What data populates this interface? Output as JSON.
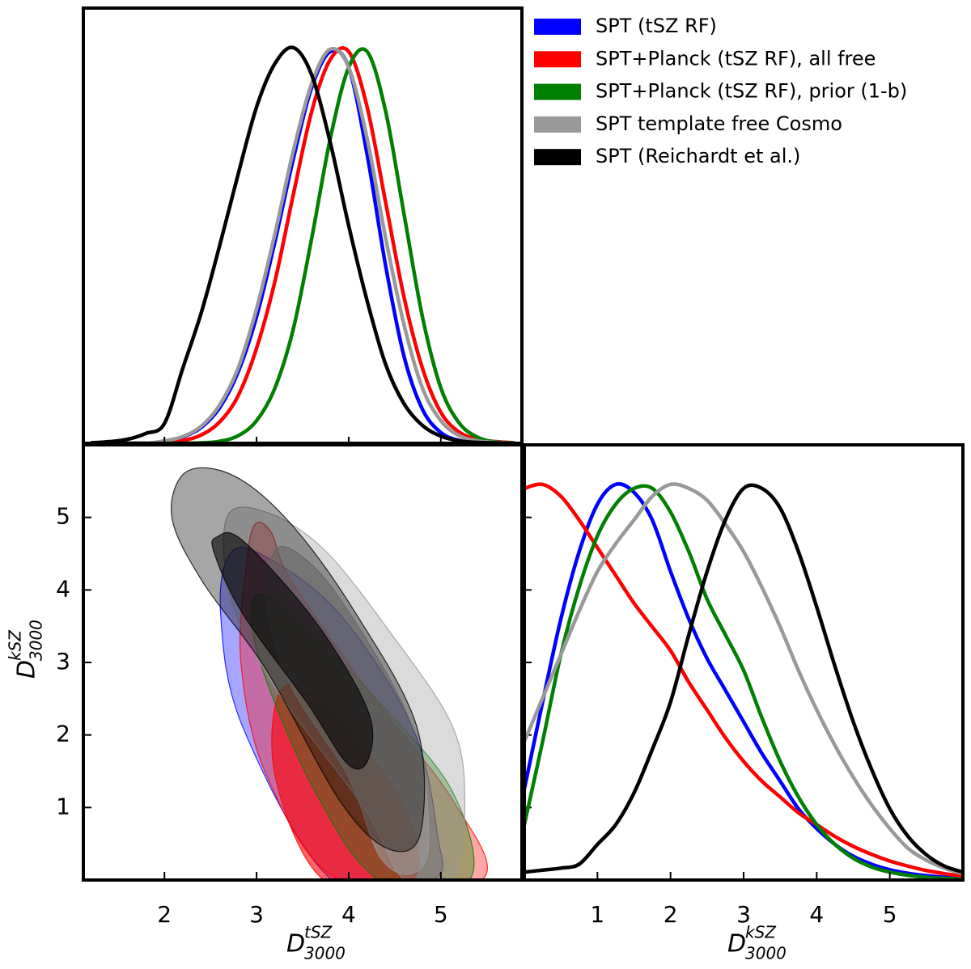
{
  "chart_data": [
    {
      "type": "line",
      "legend": "upper right",
      "xlim": [
        1.12,
        5.88
      ],
      "ylim": [
        0,
        1.1
      ],
      "x": [
        1.2,
        1.4,
        1.6,
        1.8,
        2.0,
        2.2,
        2.4,
        2.6,
        2.8,
        3.0,
        3.2,
        3.4,
        3.6,
        3.8,
        4.0,
        4.2,
        4.4,
        4.6,
        4.8,
        5.0,
        5.2,
        5.4,
        5.6,
        5.8
      ],
      "series": [
        {
          "name": "SPT (tSZ RF)",
          "color": "#0000ff",
          "values": [
            0,
            0,
            0,
            0,
            0.005,
            0.016,
            0.04,
            0.09,
            0.18,
            0.32,
            0.51,
            0.72,
            0.9,
            0.99,
            0.95,
            0.73,
            0.45,
            0.22,
            0.086,
            0.027,
            0.007,
            0.001,
            0,
            0
          ]
        },
        {
          "name": "SPT+Planck (tSZ RF), all free",
          "color": "#ff0000",
          "values": [
            0,
            0,
            0,
            0,
            0.002,
            0.007,
            0.021,
            0.054,
            0.12,
            0.24,
            0.41,
            0.63,
            0.84,
            0.97,
            0.99,
            0.85,
            0.61,
            0.37,
            0.19,
            0.078,
            0.028,
            0.01,
            0.004,
            0.001
          ]
        },
        {
          "name": "SPT+Planck (tSZ RF), prior (1-b)",
          "color": "#008000",
          "values": [
            0,
            0,
            0,
            0,
            0,
            0,
            0.001,
            0.005,
            0.019,
            0.057,
            0.14,
            0.29,
            0.52,
            0.77,
            0.95,
            0.99,
            0.84,
            0.58,
            0.32,
            0.14,
            0.051,
            0.015,
            0.003,
            0.001
          ]
        },
        {
          "name": "SPT template free Cosmo",
          "color": "#999999",
          "values": [
            0,
            0,
            0,
            0,
            0.006,
            0.017,
            0.043,
            0.097,
            0.19,
            0.34,
            0.53,
            0.74,
            0.91,
            0.996,
            0.95,
            0.77,
            0.52,
            0.3,
            0.14,
            0.057,
            0.019,
            0.006,
            0.002,
            0
          ]
        },
        {
          "name": "SPT (Reichardt et al.)",
          "color": "#000000",
          "values": [
            0.001,
            0.004,
            0.01,
            0.025,
            0.05,
            0.19,
            0.33,
            0.5,
            0.68,
            0.85,
            0.96,
            1.0,
            0.93,
            0.76,
            0.55,
            0.36,
            0.2,
            0.1,
            0.045,
            0.018,
            0.006,
            0.002,
            0.001,
            0
          ]
        }
      ]
    },
    {
      "type": "contour",
      "xlim": [
        1.12,
        5.88
      ],
      "xticks": [
        2,
        3,
        4,
        5
      ],
      "ylim": [
        0,
        6.0
      ],
      "yticks": [
        1,
        2,
        3,
        4,
        5
      ],
      "x_label": {
        "base": "D",
        "sup": "tSZ",
        "sub": "3000"
      },
      "y_label": {
        "base": "D",
        "sup": "kSZ",
        "sub": "3000"
      },
      "series": [
        {
          "color": "#0000ff",
          "contours": [
            {
              "x": [
                2.72,
                3.11,
                3.9,
                4.69,
                4.96,
                4.91,
                3.82,
                2.85,
                2.61
              ],
              "y": [
                4.51,
                4.45,
                3.67,
                2.11,
                0.65,
                0.0,
                0.0,
                2.11,
                3.67
              ]
            }
          ]
        },
        {
          "color": "#ff0000",
          "contours": [
            {
              "x": [
                2.98,
                3.16,
                3.38,
                4.25,
                5.13,
                5.44,
                3.9,
                3.11,
                2.83,
                2.89
              ],
              "y": [
                4.9,
                4.79,
                4.12,
                2.55,
                1.1,
                0.0,
                0.0,
                1.44,
                3.0,
                4.34
              ]
            },
            {
              "x": [
                3.29,
                3.9,
                4.61,
                4.69,
                3.73,
                3.2
              ],
              "y": [
                2.66,
                2.22,
                0.99,
                0.0,
                0.0,
                1.44
              ]
            }
          ]
        },
        {
          "color": "#008000",
          "contours": [
            {
              "x": [
                2.98,
                3.38,
                4.34,
                5.13,
                5.31,
                4.34,
                3.64,
                3.04
              ],
              "y": [
                3.89,
                3.67,
                2.44,
                1.21,
                0.0,
                0.0,
                1.21,
                3.0
              ]
            }
          ]
        },
        {
          "color": "#999999",
          "contours": [
            {
              "x": [
                2.68,
                3.11,
                3.73,
                4.43,
                5.13,
                5.26,
                5.13,
                4.61,
                4.17,
                3.2,
                2.72
              ],
              "y": [
                5.01,
                5.07,
                4.56,
                3.45,
                2.11,
                0.99,
                0.04,
                0.0,
                0.99,
                2.66,
                3.89
              ]
            },
            {
              "x": [
                3.16,
                3.38,
                3.9,
                4.69,
                4.87,
                4.69,
                4.34,
                3.99,
                3.38,
                3.11
              ],
              "y": [
                4.45,
                4.56,
                3.89,
                2.11,
                0.54,
                0.09,
                0.32,
                1.44,
                2.66,
                3.78
              ]
            }
          ]
        },
        {
          "color": "#000000",
          "contours": [
            {
              "x": [
                2.24,
                2.76,
                3.38,
                4.08,
                4.74,
                4.78,
                4.43,
                3.9,
                3.11,
                2.41,
                2.08
              ],
              "y": [
                5.63,
                5.57,
                4.9,
                3.67,
                2.11,
                0.65,
                0.43,
                1.1,
                2.89,
                4.12,
                5.01
              ]
            },
            {
              "x": [
                2.57,
                2.85,
                3.64,
                4.21,
                4.21,
                3.99,
                3.55,
                2.85,
                2.54
              ],
              "y": [
                4.73,
                4.68,
                3.56,
                2.33,
                1.66,
                1.6,
                2.44,
                3.67,
                4.51
              ]
            }
          ]
        }
      ]
    },
    {
      "type": "line",
      "xlim": [
        0,
        6
      ],
      "xticks": [
        1,
        2,
        3,
        4,
        5
      ],
      "ylim": [
        0,
        1.1
      ],
      "x_label": {
        "base": "D",
        "sup": "kSZ",
        "sub": "3000"
      },
      "x": [
        0,
        0.25,
        0.5,
        0.75,
        1.0,
        1.25,
        1.5,
        1.75,
        2.0,
        2.25,
        2.5,
        2.75,
        3.0,
        3.25,
        3.5,
        3.75,
        4.0,
        4.25,
        4.5,
        4.75,
        5.0,
        5.25,
        5.5,
        5.75,
        6.0
      ],
      "series": [
        {
          "color": "#0000ff",
          "values": [
            0.23,
            0.45,
            0.66,
            0.83,
            0.95,
            1.0,
            0.98,
            0.91,
            0.78,
            0.66,
            0.56,
            0.48,
            0.4,
            0.32,
            0.25,
            0.18,
            0.13,
            0.09,
            0.06,
            0.04,
            0.026,
            0.017,
            0.011,
            0.007,
            0.005
          ]
        },
        {
          "color": "#ff0000",
          "values": [
            0.99,
            1.0,
            0.97,
            0.91,
            0.84,
            0.77,
            0.7,
            0.64,
            0.58,
            0.5,
            0.43,
            0.36,
            0.3,
            0.25,
            0.21,
            0.17,
            0.14,
            0.11,
            0.085,
            0.065,
            0.048,
            0.035,
            0.024,
            0.016,
            0.01
          ]
        },
        {
          "color": "#008000",
          "values": [
            0.14,
            0.35,
            0.57,
            0.74,
            0.87,
            0.95,
            0.99,
            0.99,
            0.93,
            0.83,
            0.71,
            0.62,
            0.53,
            0.41,
            0.3,
            0.21,
            0.14,
            0.09,
            0.055,
            0.033,
            0.02,
            0.012,
            0.007,
            0.004,
            0.002
          ]
        },
        {
          "color": "#999999",
          "values": [
            0.35,
            0.46,
            0.57,
            0.68,
            0.78,
            0.85,
            0.91,
            0.97,
            1.0,
            0.99,
            0.96,
            0.9,
            0.83,
            0.74,
            0.64,
            0.53,
            0.43,
            0.34,
            0.26,
            0.19,
            0.13,
            0.08,
            0.05,
            0.03,
            0.016
          ]
        },
        {
          "color": "#000000",
          "values": [
            0.02,
            0.025,
            0.03,
            0.04,
            0.09,
            0.14,
            0.22,
            0.33,
            0.45,
            0.62,
            0.78,
            0.91,
            0.99,
            0.99,
            0.94,
            0.83,
            0.69,
            0.54,
            0.4,
            0.28,
            0.18,
            0.11,
            0.064,
            0.035,
            0.02
          ]
        }
      ]
    }
  ]
}
